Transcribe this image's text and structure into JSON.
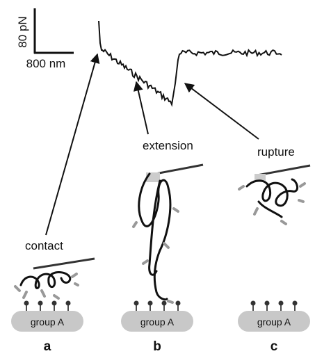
{
  "scale_bar": {
    "force_label": "80 pN",
    "distance_label": "800 nm"
  },
  "annotations": {
    "contact": "contact",
    "extension": "extension",
    "rupture": "rupture"
  },
  "panels": [
    {
      "label": "a",
      "surface": "group A"
    },
    {
      "label": "b",
      "surface": "group A"
    },
    {
      "label": "c",
      "surface": "group A"
    }
  ]
}
